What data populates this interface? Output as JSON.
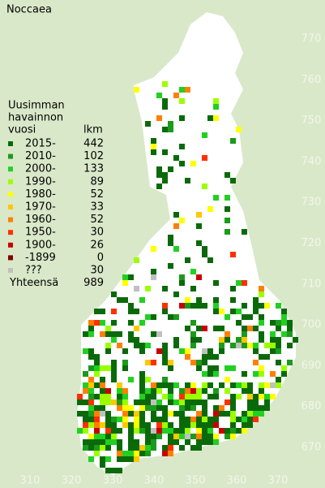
{
  "title": "Noccaea",
  "legend": {
    "heading": [
      "Uusimman",
      "havainnon",
      "vuosi"
    ],
    "count_heading": "lkm",
    "rows": [
      {
        "label": "2015-",
        "count": 442,
        "color": "#0a6a0a"
      },
      {
        "label": "2010-",
        "count": 102,
        "color": "#1c9a1c"
      },
      {
        "label": "2000-",
        "count": 133,
        "color": "#22d022"
      },
      {
        "label": "1990-",
        "count": 89,
        "color": "#9cff00"
      },
      {
        "label": "1980-",
        "count": 52,
        "color": "#ffff00"
      },
      {
        "label": "1970-",
        "count": 33,
        "color": "#ffc800"
      },
      {
        "label": "1960-",
        "count": 52,
        "color": "#ff8000"
      },
      {
        "label": "1950-",
        "count": 30,
        "color": "#ff3000"
      },
      {
        "label": "1900-",
        "count": 26,
        "color": "#c80000"
      },
      {
        "label": "-1899",
        "count": 0,
        "color": "#800000"
      },
      {
        "label": "???",
        "count": 30,
        "color": "#c0c0c0"
      }
    ],
    "total": {
      "label": "Yhteensä",
      "count": 989
    }
  },
  "x_labels": [
    310,
    320,
    330,
    340,
    350,
    360,
    370
  ],
  "y_labels": [
    770,
    760,
    750,
    740,
    730,
    720,
    710,
    700,
    690,
    680,
    670
  ]
}
